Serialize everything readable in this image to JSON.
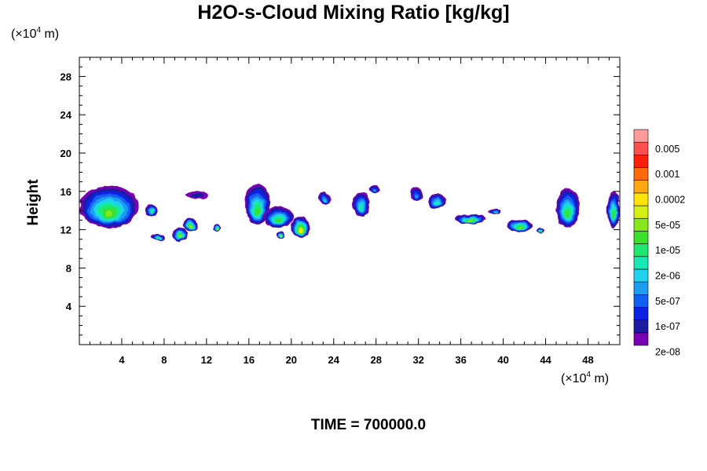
{
  "chart_data": {
    "type": "heatmap",
    "title": "H2O-s-Cloud Mixing Ratio [kg/kg]",
    "ylabel": "Height",
    "xunit": {
      "prefix": "(×10",
      "exp": "4",
      "suffix": " m)"
    },
    "yunit": {
      "prefix": "(×10",
      "exp": "4",
      "suffix": " m)"
    },
    "xlim": [
      0,
      51
    ],
    "ylim": [
      0,
      30
    ],
    "xticks": [
      "4",
      "8",
      "12",
      "16",
      "20",
      "24",
      "28",
      "32",
      "36",
      "40",
      "44",
      "48"
    ],
    "yticks": [
      "4",
      "8",
      "12",
      "16",
      "20",
      "24",
      "28"
    ],
    "grid": false,
    "time_label": "TIME = 700000.0",
    "colorbar": {
      "labels": [
        "0.005",
        "0.001",
        "0.0002",
        "5e-05",
        "1e-05",
        "2e-06",
        "5e-07",
        "1e-07",
        "2e-08"
      ],
      "colors": [
        "#7a00b4",
        "#1c1ca0",
        "#0b21e6",
        "#1260f0",
        "#1e9cf2",
        "#1ed2f0",
        "#16e8b2",
        "#1ee96e",
        "#3ae02a",
        "#86e81c",
        "#d2f012",
        "#ffe40a",
        "#ffa812",
        "#ff6a0a",
        "#ff1e0a",
        "#ff4e4e",
        "#ff9a9a"
      ]
    },
    "cloud_regions": [
      {
        "x": [
          0.0,
          5.6
        ],
        "y": [
          12.2,
          16.6
        ],
        "level": 9
      },
      {
        "x": [
          6.2,
          7.4
        ],
        "y": [
          13.4,
          14.6
        ],
        "level": 7
      },
      {
        "x": [
          6.8,
          8.0
        ],
        "y": [
          10.8,
          11.6
        ],
        "level": 8
      },
      {
        "x": [
          8.8,
          10.2
        ],
        "y": [
          10.8,
          12.2
        ],
        "level": 10
      },
      {
        "x": [
          9.8,
          11.2
        ],
        "y": [
          11.8,
          13.2
        ],
        "level": 10
      },
      {
        "x": [
          10.0,
          12.2
        ],
        "y": [
          15.2,
          16.0
        ],
        "level": 1
      },
      {
        "x": [
          12.6,
          13.4
        ],
        "y": [
          11.8,
          12.6
        ],
        "level": 10
      },
      {
        "x": [
          15.6,
          18.0
        ],
        "y": [
          12.5,
          16.8
        ],
        "level": 8
      },
      {
        "x": [
          17.4,
          20.2
        ],
        "y": [
          12.2,
          14.4
        ],
        "level": 8
      },
      {
        "x": [
          18.6,
          19.4
        ],
        "y": [
          11.0,
          11.8
        ],
        "level": 10
      },
      {
        "x": [
          20.0,
          21.8
        ],
        "y": [
          11.2,
          13.4
        ],
        "level": 11
      },
      {
        "x": [
          22.6,
          23.8
        ],
        "y": [
          14.6,
          16.0
        ],
        "level": 5
      },
      {
        "x": [
          25.8,
          27.4
        ],
        "y": [
          13.4,
          16.0
        ],
        "level": 6
      },
      {
        "x": [
          27.4,
          28.4
        ],
        "y": [
          15.8,
          16.6
        ],
        "level": 4
      },
      {
        "x": [
          31.2,
          32.4
        ],
        "y": [
          15.0,
          16.4
        ],
        "level": 4
      },
      {
        "x": [
          33.0,
          34.6
        ],
        "y": [
          14.2,
          15.8
        ],
        "level": 6
      },
      {
        "x": [
          35.4,
          38.4
        ],
        "y": [
          12.6,
          13.6
        ],
        "level": 9
      },
      {
        "x": [
          38.6,
          39.8
        ],
        "y": [
          13.6,
          14.2
        ],
        "level": 5
      },
      {
        "x": [
          40.4,
          42.8
        ],
        "y": [
          11.8,
          13.0
        ],
        "level": 9
      },
      {
        "x": [
          43.0,
          43.8
        ],
        "y": [
          11.6,
          12.2
        ],
        "level": 8
      },
      {
        "x": [
          45.0,
          47.2
        ],
        "y": [
          12.2,
          16.4
        ],
        "level": 8
      },
      {
        "x": [
          49.8,
          51.0
        ],
        "y": [
          12.2,
          16.0
        ],
        "level": 8
      }
    ]
  }
}
